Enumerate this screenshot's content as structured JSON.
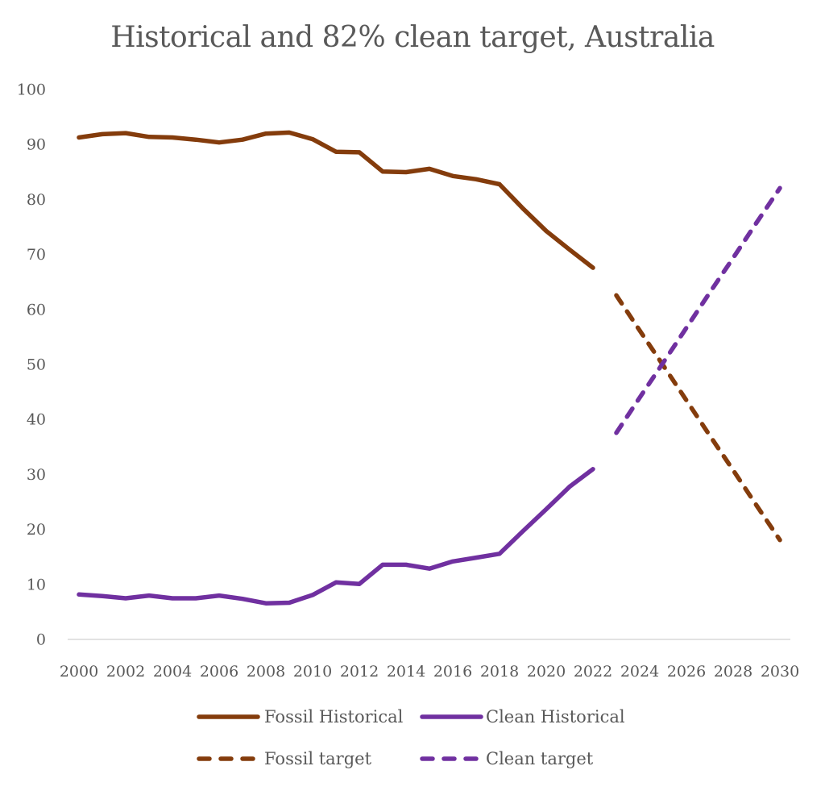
{
  "chart_data": {
    "type": "line",
    "title": "Historical and 82% clean target, Australia",
    "xlabel": "",
    "ylabel": "",
    "ylim": [
      0,
      100
    ],
    "xlim": [
      2000,
      2030
    ],
    "grid": false,
    "y_ticks": [
      "0",
      "10",
      "20",
      "30",
      "40",
      "50",
      "60",
      "70",
      "80",
      "90",
      "100"
    ],
    "x_ticks": [
      "2000",
      "2002",
      "2004",
      "2006",
      "2008",
      "2010",
      "2012",
      "2014",
      "2016",
      "2018",
      "2020",
      "2022",
      "2024",
      "2026",
      "2028",
      "2030"
    ],
    "legend_position": "bottom",
    "series": [
      {
        "name": "Fossil Historical",
        "color": "#843C0C",
        "style": "solid",
        "x": [
          2000,
          2001,
          2002,
          2003,
          2004,
          2005,
          2006,
          2007,
          2008,
          2009,
          2010,
          2011,
          2012,
          2013,
          2014,
          2015,
          2016,
          2017,
          2018,
          2019,
          2020,
          2021,
          2022
        ],
        "values": [
          91.2,
          91.8,
          92.0,
          91.3,
          91.2,
          90.8,
          90.3,
          90.8,
          91.9,
          92.1,
          90.9,
          88.6,
          88.5,
          85.0,
          84.9,
          85.5,
          84.2,
          83.6,
          82.7,
          78.3,
          74.2,
          70.8,
          67.5
        ]
      },
      {
        "name": "Clean Historical",
        "color": "#7030A0",
        "style": "solid",
        "x": [
          2000,
          2001,
          2002,
          2003,
          2004,
          2005,
          2006,
          2007,
          2008,
          2009,
          2010,
          2011,
          2012,
          2013,
          2014,
          2015,
          2016,
          2017,
          2018,
          2019,
          2020,
          2021,
          2022
        ],
        "values": [
          8.1,
          7.8,
          7.4,
          7.9,
          7.4,
          7.4,
          7.9,
          7.3,
          6.5,
          6.6,
          8.0,
          10.3,
          10.0,
          13.5,
          13.5,
          12.8,
          14.1,
          14.8,
          15.5,
          19.6,
          23.6,
          27.7,
          30.9
        ]
      },
      {
        "name": "Fossil target",
        "color": "#843C0C",
        "style": "dashed",
        "x": [
          2023,
          2024,
          2025,
          2026,
          2027,
          2028,
          2029,
          2030
        ],
        "values": [
          62.5,
          56.1,
          49.8,
          43.4,
          37.0,
          30.7,
          24.3,
          18.0
        ]
      },
      {
        "name": "Clean target",
        "color": "#7030A0",
        "style": "dashed",
        "x": [
          2023,
          2024,
          2025,
          2026,
          2027,
          2028,
          2029,
          2030
        ],
        "values": [
          37.5,
          43.9,
          50.2,
          56.6,
          63.0,
          69.3,
          75.7,
          82.0
        ]
      }
    ]
  }
}
